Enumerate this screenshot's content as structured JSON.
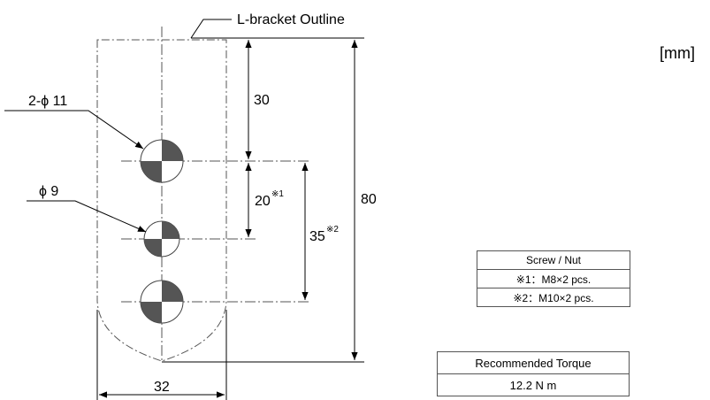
{
  "unit": "[mm]",
  "outline_label": "L-bracket Outline",
  "hole_labels": {
    "large": "2-ϕ 11",
    "small": "ϕ 9"
  },
  "dimensions": {
    "top_to_hole": "30",
    "hole_pitch_1": "20",
    "hole_pitch_1_note": "※1",
    "hole_pitch_2": "35",
    "hole_pitch_2_note": "※2",
    "total_height": "80",
    "width": "32"
  },
  "screw_table": {
    "header": "Screw / Nut",
    "rows": [
      "※1：M8×2 pcs.",
      "※2：M10×2 pcs."
    ]
  },
  "torque_table": {
    "header": "Recommended Torque",
    "value": "12.2 N m"
  }
}
